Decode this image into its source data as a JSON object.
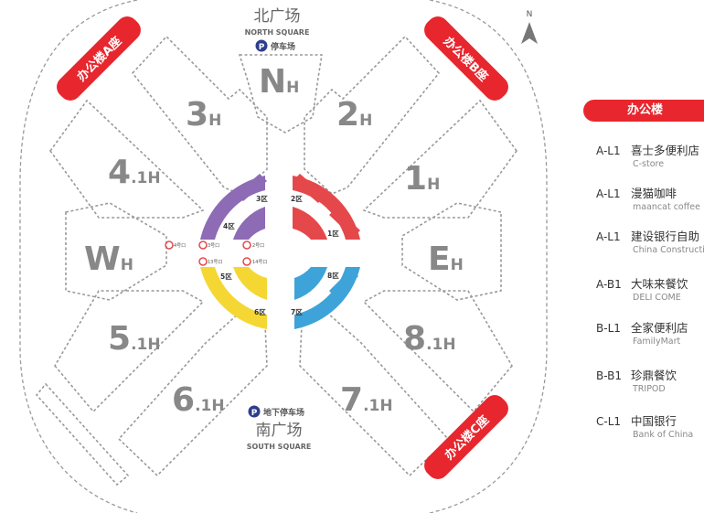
{
  "compass": {
    "label": "N"
  },
  "north": {
    "title": "北广场",
    "subtitle": "NORTH SQUARE",
    "parking_icon": "P",
    "parking": "停车场"
  },
  "south": {
    "title": "南广场",
    "subtitle": "SOUTH SQUARE",
    "parking_icon": "P",
    "parking": "地下停车场"
  },
  "office_ribbons": {
    "a": "办公楼A座",
    "b": "办公楼B座",
    "c": "办公楼C座"
  },
  "halls": {
    "n_main": "N",
    "n_sub": "H",
    "h3_main": "3",
    "h3_sub": "H",
    "h2_main": "2",
    "h2_sub": "H",
    "h4_main": "4",
    "h4_sub": ".1H",
    "h1_main": "1",
    "h1_sub": "H",
    "w_main": "W",
    "w_sub": "H",
    "e_main": "E",
    "e_sub": "H",
    "h5_main": "5",
    "h5_sub": ".1H",
    "h8_main": "8",
    "h8_sub": ".1H",
    "h6_main": "6",
    "h6_sub": ".1H",
    "h7_main": "7",
    "h7_sub": ".1H"
  },
  "zones": {
    "z1": "1区",
    "z2": "2区",
    "z3": "3区",
    "z4": "4区",
    "z5": "5区",
    "z6": "6区",
    "z7": "7区",
    "z8": "8区"
  },
  "exits": {
    "e4": "4号口",
    "e3": "3号口",
    "e2": "2号口",
    "e13": "13号口",
    "e14": "14号口"
  },
  "colors": {
    "purple": "#8e6bb5",
    "red": "#e5484b",
    "yellow": "#f5d733",
    "blue": "#3ea3d8",
    "ribbon": "#e8262e"
  },
  "panel": {
    "title": "办公楼",
    "items": [
      {
        "code": "A-L1",
        "name": "喜士多便利店",
        "en": "C-store"
      },
      {
        "code": "A-L1",
        "name": "漫猫咖啡",
        "en": "maancat coffee"
      },
      {
        "code": "A-L1",
        "name": "建设银行自助",
        "en": "China Construction"
      },
      {
        "code": "A-B1",
        "name": "大味来餐饮",
        "en": "DELI COME"
      },
      {
        "code": "B-L1",
        "name": "全家便利店",
        "en": "FamilyMart"
      },
      {
        "code": "B-B1",
        "name": "珍鼎餐饮",
        "en": "TRIPOD"
      },
      {
        "code": "C-L1",
        "name": "中国银行",
        "en": "Bank of China"
      }
    ]
  }
}
